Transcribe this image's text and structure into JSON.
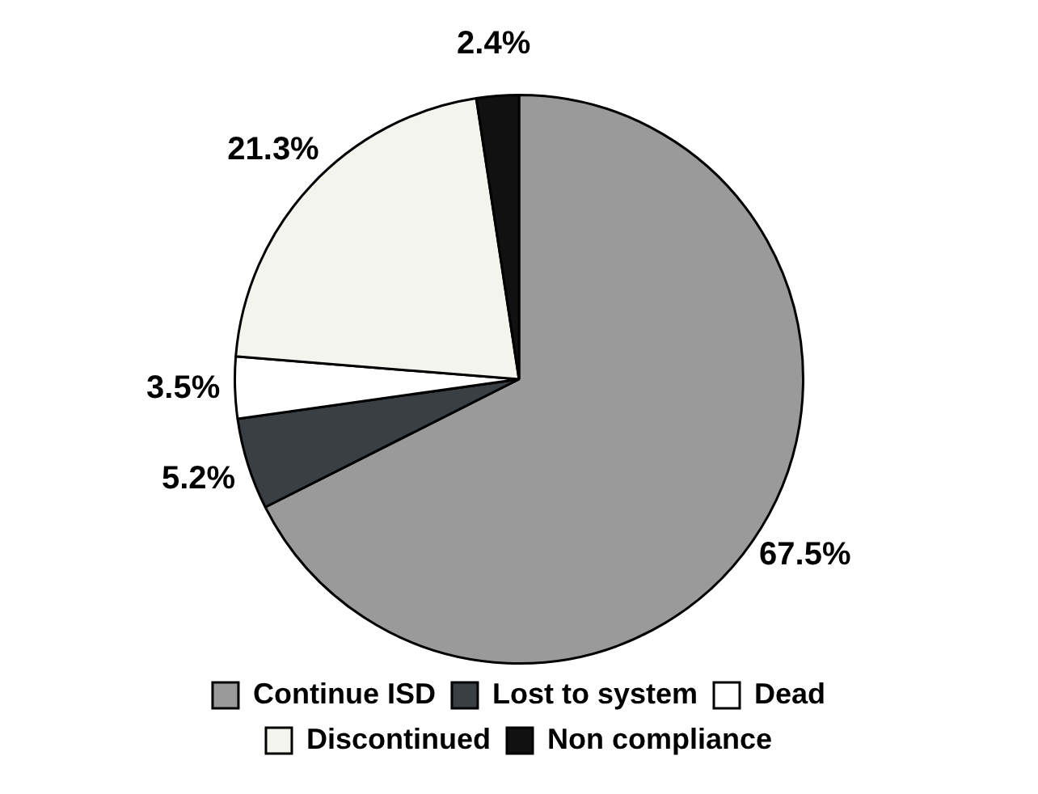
{
  "chart_data": {
    "type": "pie",
    "categories": [
      "Continue ISD",
      "Lost to system",
      "Dead",
      "Discontinued",
      "Non compliance"
    ],
    "values": [
      67.5,
      5.2,
      3.5,
      21.3,
      2.4
    ],
    "colors": [
      "#9a9a9a",
      "#3a3f44",
      "#ffffff",
      "#f4f4ef",
      "#111111"
    ],
    "value_labels": [
      "67.5%",
      "5.2%",
      "3.5%",
      "21.3%",
      "2.4%"
    ],
    "legend": "bottom"
  }
}
